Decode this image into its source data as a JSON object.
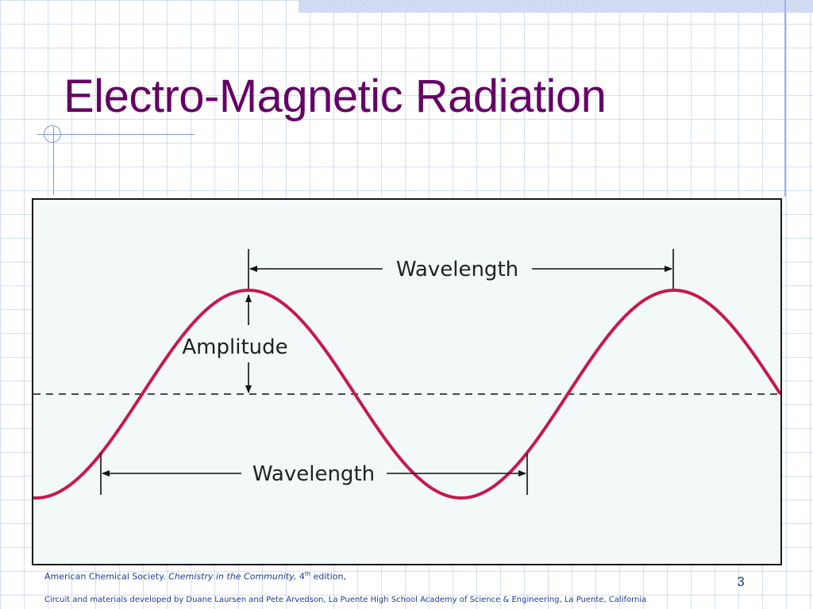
{
  "slide": {
    "title": "Electro-Magnetic Radiation",
    "page_number": "3"
  },
  "diagram": {
    "label_wavelength_top": "Wavelength",
    "label_amplitude": "Amplitude",
    "label_wavelength_bottom": "Wavelength",
    "wave_color": "#c8184e",
    "background_color": "#f2f9f8"
  },
  "footer": {
    "source_prefix": "American Chemical Society.",
    "source_title": "Chemistry in the Community,",
    "edition_number": "4",
    "edition_suffix": "th",
    "edition_word": "edition,",
    "credits": "Circuit and materials developed by Duane Laursen and Pete Arvedson, La Puente High School Academy of Science & Engineering, La Puente, California"
  },
  "colors": {
    "title": "#660066",
    "footer_text": "#1f3b8f",
    "grid": "#b2c4e8"
  }
}
